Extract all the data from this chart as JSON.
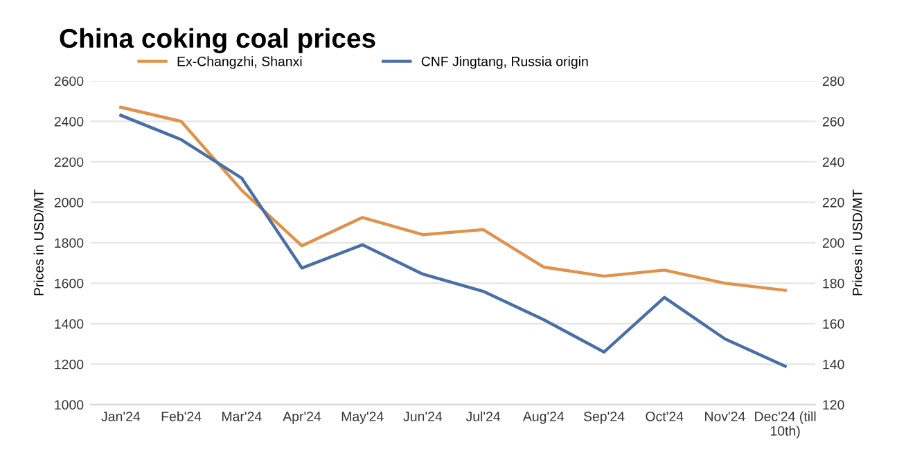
{
  "chart_data": {
    "type": "line",
    "title": "China coking coal prices",
    "categories": [
      "Jan'24",
      "Feb'24",
      "Mar'24",
      "Apr'24",
      "May'24",
      "Jun'24",
      "Jul'24",
      "Aug'24",
      "Sep'24",
      "Oct'24",
      "Nov'24",
      "Dec'24 (till\n10th)"
    ],
    "series": [
      {
        "name": "Ex-Changzhi, Shanxi",
        "color": "#e0924a",
        "values": [
          2470,
          2400,
          2060,
          1785,
          1925,
          1840,
          1865,
          1680,
          1635,
          1665,
          1600,
          1565
        ]
      },
      {
        "name": "CNF Jingtang, Russia origin",
        "color": "#4a6fa5",
        "axis": "y2",
        "values": [
          263,
          251,
          232,
          187.5,
          199,
          184.5,
          176,
          162,
          146,
          173,
          152.5,
          139
        ]
      }
    ],
    "ylabel": "Prices in USD/MT",
    "y2label": "Prices in USD/MT",
    "ylim": [
      1000,
      2600
    ],
    "yticks": [
      1000,
      1200,
      1400,
      1600,
      1800,
      2000,
      2200,
      2400,
      2600
    ],
    "y2lim": [
      120,
      280
    ],
    "y2ticks": [
      120,
      140,
      160,
      180,
      200,
      220,
      240,
      260,
      280
    ],
    "grid": "y",
    "legend": "top",
    "marker": "none",
    "line_style": "solid"
  }
}
